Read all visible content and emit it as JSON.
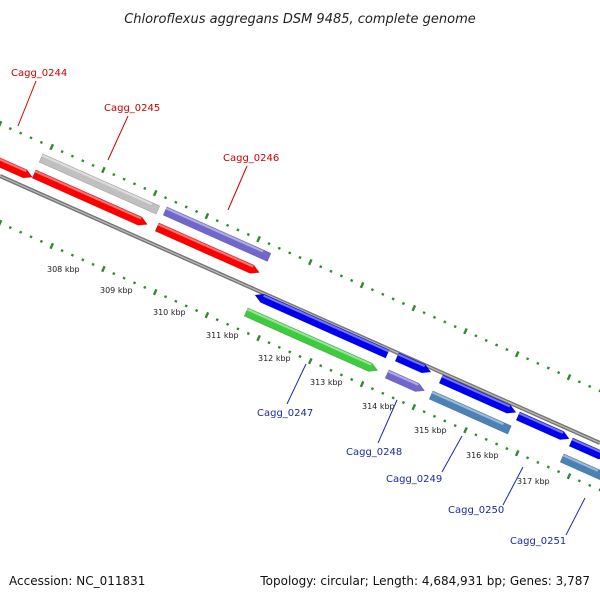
{
  "title": "Chloroflexus aggregans DSM 9485, complete genome",
  "footer": {
    "accession": "Accession: NC_011831",
    "summary": "Topology: circular; Length: 4,684,931 bp; Genes: 3,787"
  },
  "ticks": [
    "308 kbp",
    "309 kbp",
    "310 kbp",
    "311 kbp",
    "312 kbp",
    "313 kbp",
    "314 kbp",
    "315 kbp",
    "316 kbp",
    "317 kbp"
  ],
  "gene_labels": [
    "Cagg_0244",
    "Cagg_0245",
    "Cagg_0246",
    "Cagg_0247",
    "Cagg_0248",
    "Cagg_0249",
    "Cagg_0250",
    "Cagg_0251"
  ],
  "colors": {
    "red": "#ff0000",
    "grey": "#c0c0c0",
    "purple": "#7066cc",
    "blue": "#0000ee",
    "green": "#3dcc3d",
    "steel": "#4a82b6",
    "backbone": "#888888",
    "tick": "#2d8a2d"
  }
}
